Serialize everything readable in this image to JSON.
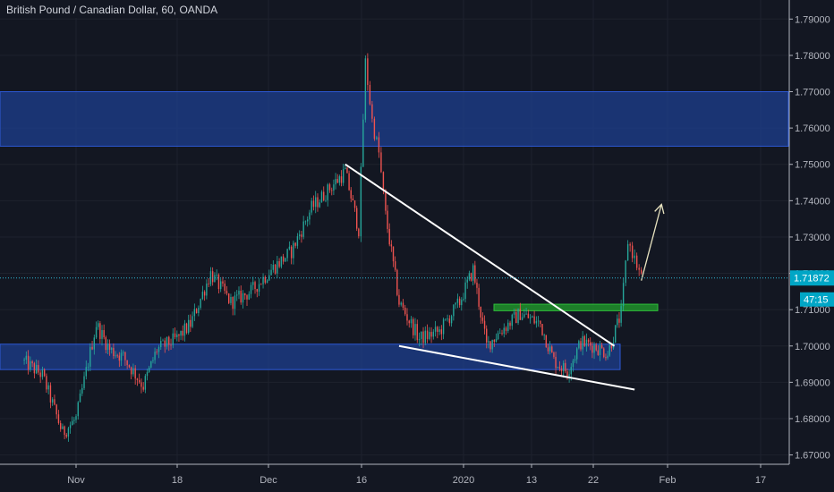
{
  "chart_data": {
    "type": "candlestick",
    "title": "British Pound / Canadian Dollar, 60, OANDA",
    "y_axis": {
      "min": 1.663,
      "max": 1.795,
      "ticks": [
        "1.67000",
        "1.68000",
        "1.69000",
        "1.70000",
        "1.71000",
        "1.72000",
        "1.73000",
        "1.74000",
        "1.75000",
        "1.76000",
        "1.77000",
        "1.78000",
        "1.79000"
      ]
    },
    "x_axis": {
      "ticks": [
        "Nov",
        "18",
        "Dec",
        "16",
        "2020",
        "13",
        "22",
        "Feb",
        "17"
      ]
    },
    "last_price": "1.71872",
    "countdown": "47:15",
    "grid": true,
    "zones": [
      {
        "name": "upper-resistance-zone",
        "from": 1.755,
        "to": 1.77,
        "color": "#1e3f8f"
      },
      {
        "name": "lower-support-zone",
        "from": 1.6935,
        "to": 1.7005,
        "color": "#1e3f8f"
      },
      {
        "name": "breakout-zone",
        "from": 1.7097,
        "to": 1.7115,
        "color": "#1f8a2a"
      }
    ],
    "trendlines": [
      {
        "name": "upper-trendline",
        "from": [
          "Dec 11",
          1.75
        ],
        "to": [
          "Jan 20",
          1.7
        ]
      },
      {
        "name": "lower-trendline",
        "from": [
          "Dec 19",
          1.7
        ],
        "to": [
          "Jan 23",
          1.688
        ]
      }
    ],
    "projection_arrow": {
      "from": [
        "Jan 24",
        1.718
      ],
      "to": [
        "Jan 27",
        1.739
      ]
    },
    "price_path": [
      [
        "Oct 24",
        1.696
      ],
      [
        "Oct 27",
        1.692
      ],
      [
        "Oct 30",
        1.676
      ],
      [
        "Nov 1",
        1.68
      ],
      [
        "Nov 4",
        1.706
      ],
      [
        "Nov 6",
        1.699
      ],
      [
        "Nov 8",
        1.697
      ],
      [
        "Nov 11",
        1.689
      ],
      [
        "Nov 13",
        1.699
      ],
      [
        "Nov 16",
        1.702
      ],
      [
        "Nov 18",
        1.706
      ],
      [
        "Nov 21",
        1.72
      ],
      [
        "Nov 24",
        1.712
      ],
      [
        "Nov 27",
        1.715
      ],
      [
        "Nov 30",
        1.721
      ],
      [
        "Dec 3",
        1.726
      ],
      [
        "Dec 6",
        1.738
      ],
      [
        "Dec 9",
        1.744
      ],
      [
        "Dec 11",
        1.748
      ],
      [
        "Dec 13",
        1.732
      ],
      [
        "Dec 14",
        1.778
      ],
      [
        "Dec 15",
        1.762
      ],
      [
        "Dec 16",
        1.753
      ],
      [
        "Dec 17",
        1.736
      ],
      [
        "Dec 19",
        1.712
      ],
      [
        "Dec 22",
        1.702
      ],
      [
        "Dec 25",
        1.704
      ],
      [
        "Dec 28",
        1.712
      ],
      [
        "Dec 30",
        1.721
      ],
      [
        "Jan 1",
        1.7
      ],
      [
        "Jan 3",
        1.704
      ],
      [
        "Jan 6",
        1.709
      ],
      [
        "Jan 9",
        1.706
      ],
      [
        "Jan 11",
        1.696
      ],
      [
        "Jan 13",
        1.693
      ],
      [
        "Jan 15",
        1.701
      ],
      [
        "Jan 17",
        1.7
      ],
      [
        "Jan 19",
        1.698
      ],
      [
        "Jan 21",
        1.709
      ],
      [
        "Jan 22",
        1.729
      ],
      [
        "Jan 23",
        1.724
      ],
      [
        "Jan 24",
        1.7187
      ]
    ]
  }
}
